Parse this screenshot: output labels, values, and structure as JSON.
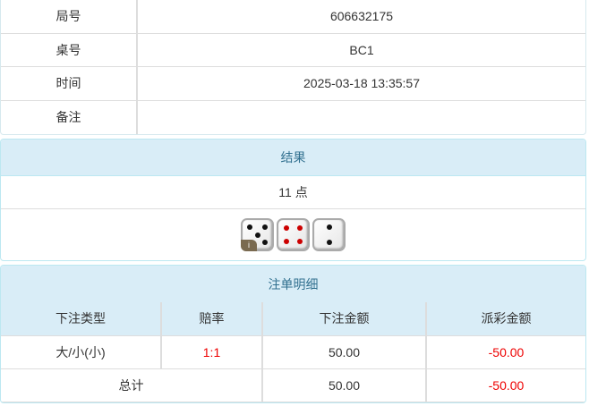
{
  "info": [
    {
      "label": "局号",
      "value": "606632175"
    },
    {
      "label": "桌号",
      "value": "BC1"
    },
    {
      "label": "时间",
      "value": "2025-03-18 13:35:57"
    },
    {
      "label": "备注",
      "value": ""
    }
  ],
  "result": {
    "title": "结果",
    "points": "11 点",
    "dice": [
      5,
      4,
      2
    ],
    "badge": "i"
  },
  "bets": {
    "title": "注单明细",
    "headers": [
      "下注类型",
      "赔率",
      "下注金额",
      "派彩金额"
    ],
    "rows": [
      {
        "type": "大/小(小)",
        "odds": "1:1",
        "amount": "50.00",
        "payout": "-50.00"
      }
    ],
    "total": {
      "label": "总计",
      "amount": "50.00",
      "payout": "-50.00"
    }
  },
  "colors": {
    "header_bg": "#d9edf7",
    "header_text": "#31708f",
    "negative": "#ee0000",
    "pip_red": "#cc0000"
  }
}
